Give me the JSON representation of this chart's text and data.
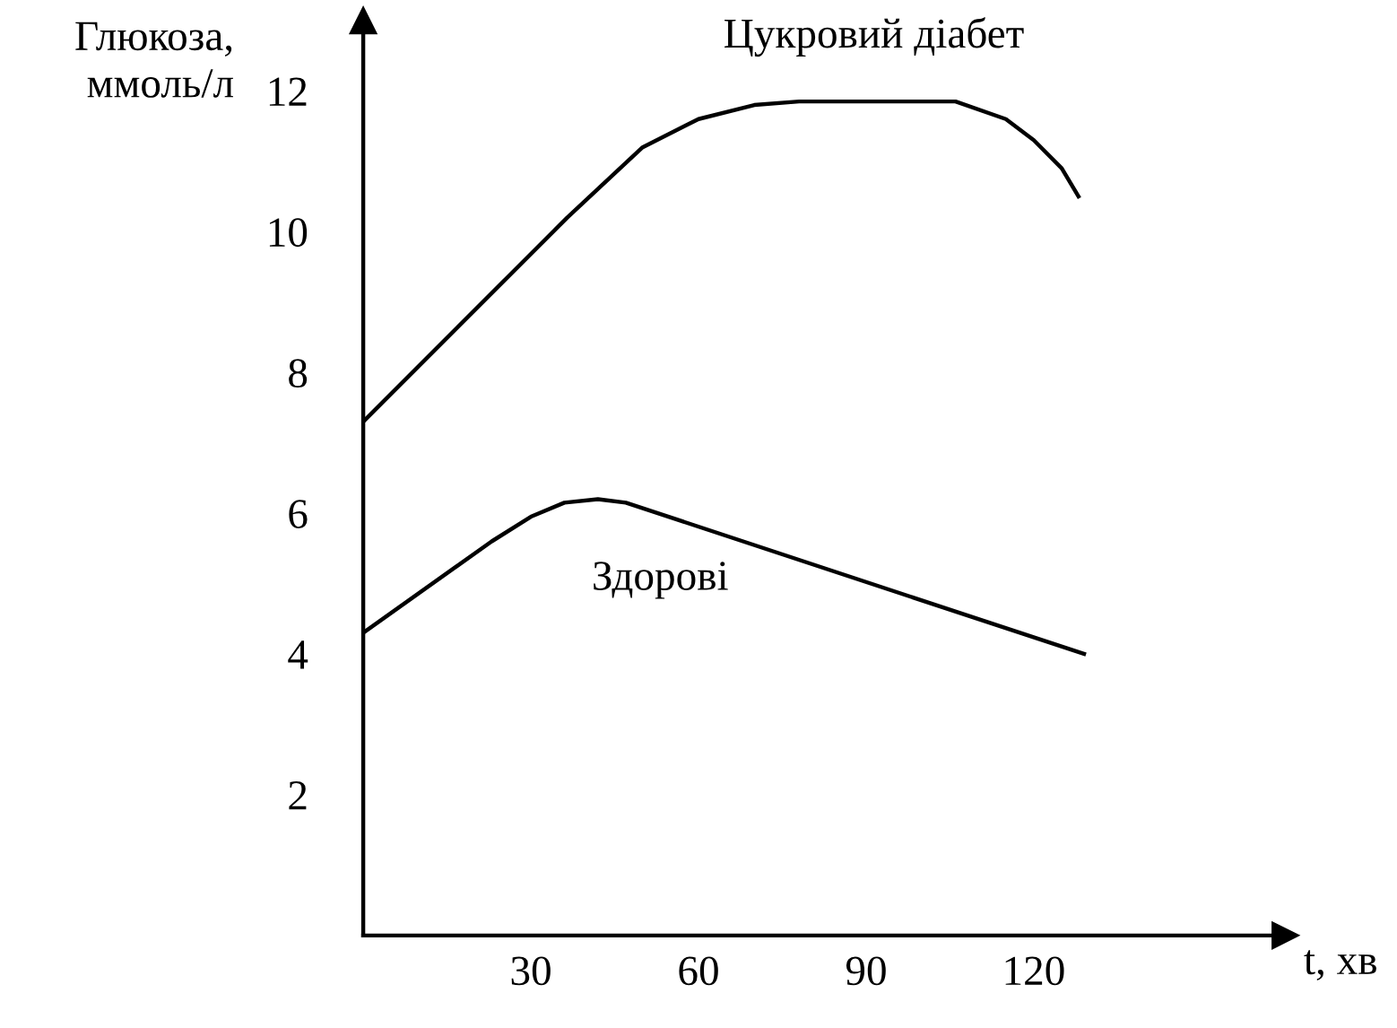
{
  "chart_data": {
    "type": "line",
    "ylabel": "Глюкоза,\nммоль/л",
    "xlabel": "t, хв",
    "series": [
      {
        "name": "Цукровий діабет",
        "color": "#000000",
        "x": [
          0,
          36.5,
          50,
          60,
          70,
          78,
          106,
          115,
          120,
          125,
          128
        ],
        "values": [
          7.3,
          10.2,
          11.2,
          11.6,
          11.8,
          11.85,
          11.85,
          11.6,
          11.3,
          10.9,
          10.5
        ]
      },
      {
        "name": "Здорові",
        "color": "#000000",
        "x": [
          0,
          23,
          30,
          36,
          42,
          47,
          129
        ],
        "values": [
          4.3,
          5.6,
          5.95,
          6.15,
          6.2,
          6.15,
          4.0
        ]
      }
    ],
    "xlim": [
      0,
      165
    ],
    "ylim": [
      0,
      13
    ],
    "xticks": [
      30,
      60,
      90,
      120
    ],
    "yticks": [
      2,
      4,
      6,
      8,
      10,
      12
    ],
    "grid": false,
    "legend": false,
    "marker": "none",
    "line_style": "solid"
  }
}
